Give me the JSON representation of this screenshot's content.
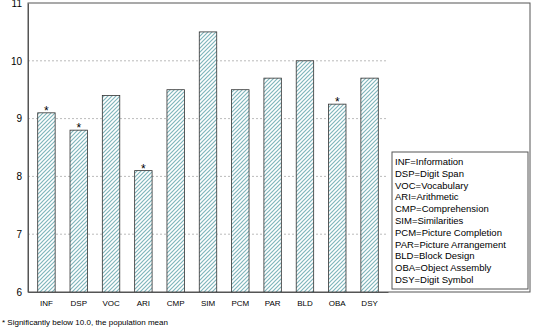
{
  "chart_data": {
    "type": "bar",
    "categories": [
      "INF",
      "DSP",
      "VOC",
      "ARI",
      "CMP",
      "SIM",
      "PCM",
      "PAR",
      "BLD",
      "OBA",
      "DSY"
    ],
    "values": [
      9.1,
      8.8,
      9.4,
      8.1,
      9.5,
      10.5,
      9.5,
      9.7,
      10.0,
      9.25,
      9.7
    ],
    "color": "#7fb6bc",
    "ylim": [
      6,
      11
    ],
    "yticks": [
      6,
      7,
      8,
      9,
      10,
      11
    ],
    "grid": true,
    "annotations": [
      {
        "x": "INF",
        "text": "*"
      },
      {
        "x": "DSP",
        "text": "*"
      },
      {
        "x": "ARI",
        "text": "*"
      },
      {
        "x": "OBA",
        "text": "*"
      }
    ],
    "abbreviations": [
      "INF=Information",
      "DSP=Digit Span",
      "VOC=Vocabulary",
      "ARI=Arithmetic",
      "CMP=Comprehension",
      "SIM=Similarities",
      "PCM=Picture Completion",
      "PAR=Picture Arrangement",
      "BLD=Block Design",
      "OBA=Object Assembly",
      "DSY=Digit Symbol"
    ],
    "footnote": "* Significantly below 10.0, the population mean"
  }
}
